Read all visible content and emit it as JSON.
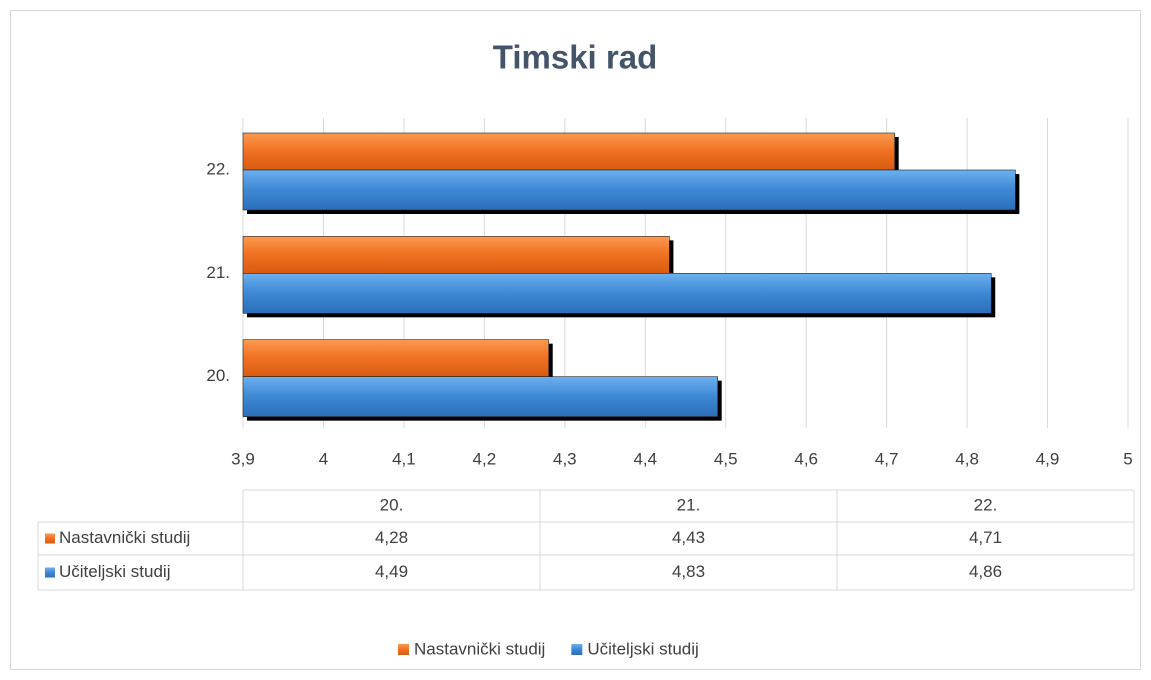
{
  "chart_data": {
    "type": "bar",
    "orientation": "horizontal",
    "title": "Timski rad",
    "categories": [
      "20.",
      "21.",
      "22."
    ],
    "series": [
      {
        "name": "Nastavnički studij",
        "color": "#f07020",
        "values": [
          4.28,
          4.43,
          4.71
        ],
        "value_labels": [
          "4,28",
          "4,43",
          "4,71"
        ]
      },
      {
        "name": "Učiteljski studij",
        "color": "#3d87d4",
        "values": [
          4.49,
          4.83,
          4.86
        ],
        "value_labels": [
          "4,49",
          "4,83",
          "4,86"
        ]
      }
    ],
    "xlim": [
      3.9,
      5
    ],
    "xticks": [
      {
        "value": 3.9,
        "label": "3,9"
      },
      4,
      {
        "value": 4.1,
        "label": "4,1"
      },
      {
        "value": 4.2,
        "label": "4,2"
      },
      {
        "value": 4.3,
        "label": "4,3"
      },
      {
        "value": 4.4,
        "label": "4,4"
      },
      {
        "value": 4.5,
        "label": "4,5"
      },
      {
        "value": 4.6,
        "label": "4,6"
      },
      {
        "value": 4.7,
        "label": "4,7"
      },
      {
        "value": 4.8,
        "label": "4,8"
      },
      {
        "value": 4.9,
        "label": "4,9"
      },
      5
    ],
    "grid": true,
    "legend": "bottom",
    "data_table": true
  }
}
